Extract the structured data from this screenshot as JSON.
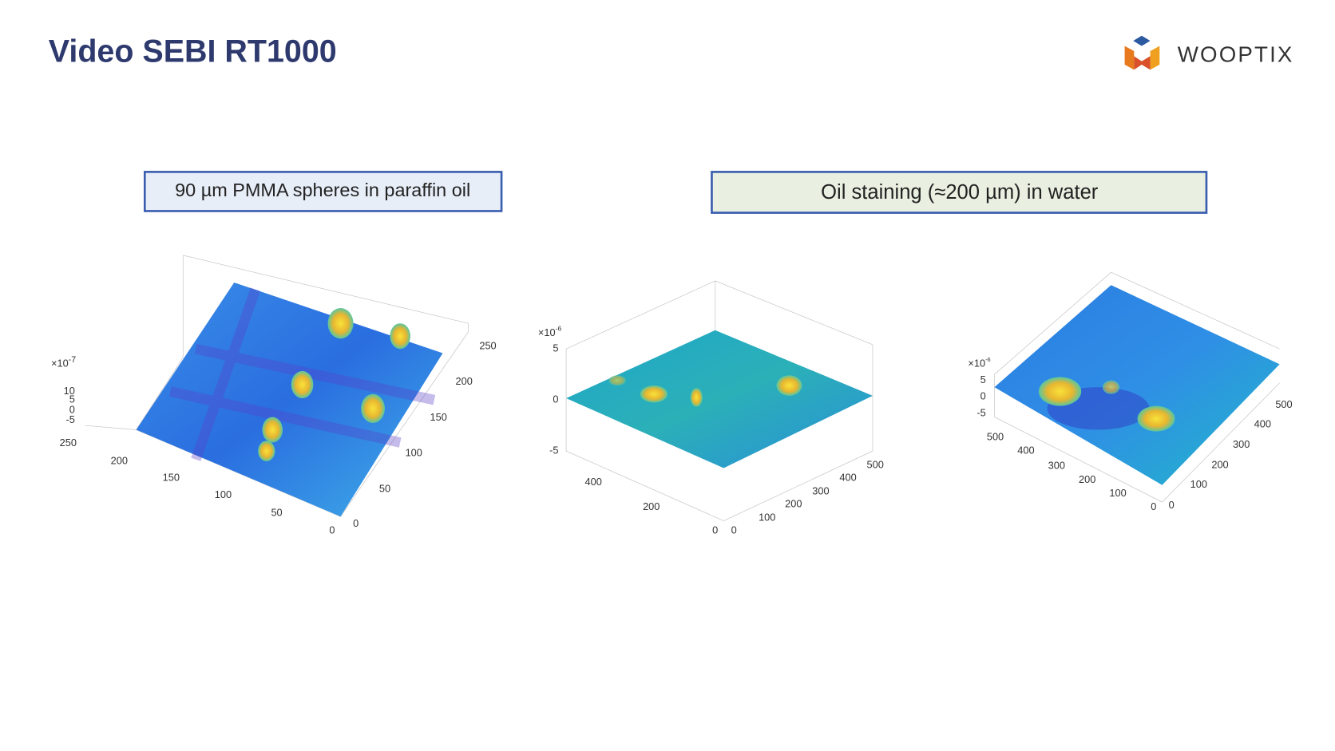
{
  "header": {
    "title": "Video SEBI RT1000",
    "logo": "WOOPTIX"
  },
  "captions": [
    "90 µm PMMA spheres in paraffin oil",
    "Oil staining (≈200 µm) in water"
  ],
  "plots": [
    {
      "z_scale": {
        "base": "×10",
        "exponent": "-7"
      },
      "zticks": [
        "10",
        "5",
        "0",
        "-5"
      ],
      "xticks": [
        "250",
        "200",
        "150",
        "100",
        "50",
        "0"
      ],
      "yticks": [
        "0",
        "50",
        "100",
        "150",
        "200",
        "250"
      ]
    },
    {
      "z_scale": {
        "base": "×10",
        "exponent": "-6"
      },
      "zticks": [
        "5",
        "0",
        "-5"
      ],
      "xticks": [
        "400",
        "200",
        "0"
      ],
      "yticks": [
        "0",
        "100",
        "200",
        "300",
        "400",
        "500"
      ]
    },
    {
      "z_scale": {
        "base": "×10",
        "exponent": "-6"
      },
      "zticks": [
        "5",
        "0",
        "-5"
      ],
      "xticks": [
        "500",
        "400",
        "300",
        "200",
        "100",
        "0"
      ],
      "yticks": [
        "0",
        "100",
        "200",
        "300",
        "400",
        "500"
      ]
    }
  ]
}
